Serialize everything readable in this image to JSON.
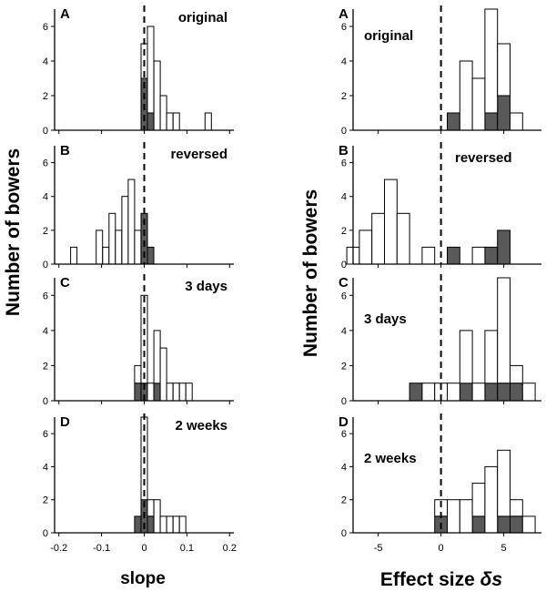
{
  "figure": {
    "left_ylabel": "Number of bowers",
    "right_ylabel": "Number of bowers",
    "left_xlabel": "slope",
    "right_xlabel_prefix": "Effect size ",
    "right_xlabel_symbol": "δs"
  },
  "colors": {
    "dark_bar": "#595959",
    "light_bar": "#ffffff",
    "axis": "#000000"
  },
  "chart_data": [
    {
      "type": "bar",
      "stacked": true,
      "column": "left",
      "panel": "A",
      "label": "original",
      "ylim": [
        0,
        7
      ],
      "yticks": [
        0,
        2,
        4,
        6
      ],
      "xlim": [
        -0.21,
        0.21
      ],
      "xticks": [
        -0.2,
        -0.1,
        0,
        0.1,
        0.2
      ],
      "xtick_labels": [
        "-0.2",
        "-0.1",
        "0",
        "0.1",
        "0.2"
      ],
      "show_xtick_labels": false,
      "bin_width": 0.015,
      "reference_line": 0,
      "series": [
        {
          "name": "dark",
          "bins": [
            [
              0.0,
              3
            ],
            [
              0.015,
              1
            ]
          ]
        },
        {
          "name": "light",
          "bins": [
            [
              0.0,
              2
            ],
            [
              0.015,
              5
            ],
            [
              0.03,
              4
            ],
            [
              0.045,
              2
            ],
            [
              0.06,
              1
            ],
            [
              0.075,
              1
            ],
            [
              0.15,
              1
            ]
          ]
        }
      ]
    },
    {
      "type": "bar",
      "stacked": true,
      "column": "left",
      "panel": "B",
      "label": "reversed",
      "ylim": [
        0,
        7
      ],
      "yticks": [
        0,
        2,
        4,
        6
      ],
      "xlim": [
        -0.21,
        0.21
      ],
      "xticks": [
        -0.2,
        -0.1,
        0,
        0.1,
        0.2
      ],
      "xtick_labels": [
        "-0.2",
        "-0.1",
        "0",
        "0.1",
        "0.2"
      ],
      "show_xtick_labels": false,
      "bin_width": 0.015,
      "reference_line": 0,
      "series": [
        {
          "name": "dark",
          "bins": [
            [
              0.0,
              3
            ],
            [
              0.015,
              1
            ]
          ]
        },
        {
          "name": "light",
          "bins": [
            [
              -0.165,
              1
            ],
            [
              -0.105,
              2
            ],
            [
              -0.09,
              1
            ],
            [
              -0.075,
              3
            ],
            [
              -0.06,
              2
            ],
            [
              -0.045,
              4
            ],
            [
              -0.03,
              5
            ],
            [
              -0.015,
              2
            ]
          ]
        }
      ]
    },
    {
      "type": "bar",
      "stacked": true,
      "column": "left",
      "panel": "C",
      "label": "3 days",
      "ylim": [
        0,
        7
      ],
      "yticks": [
        0,
        2,
        4,
        6
      ],
      "xlim": [
        -0.21,
        0.21
      ],
      "xticks": [
        -0.2,
        -0.1,
        0,
        0.1,
        0.2
      ],
      "xtick_labels": [
        "-0.2",
        "-0.1",
        "0",
        "0.1",
        "0.2"
      ],
      "show_xtick_labels": false,
      "bin_width": 0.015,
      "reference_line": 0,
      "series": [
        {
          "name": "dark",
          "bins": [
            [
              -0.015,
              1
            ],
            [
              0.0,
              1
            ],
            [
              0.03,
              1
            ]
          ]
        },
        {
          "name": "light",
          "bins": [
            [
              -0.015,
              1
            ],
            [
              0.0,
              5
            ],
            [
              0.015,
              1
            ],
            [
              0.03,
              3
            ],
            [
              0.045,
              3
            ],
            [
              0.06,
              1
            ],
            [
              0.075,
              1
            ],
            [
              0.09,
              1
            ],
            [
              0.105,
              1
            ]
          ]
        }
      ]
    },
    {
      "type": "bar",
      "stacked": true,
      "column": "left",
      "panel": "D",
      "label": "2 weeks",
      "ylim": [
        0,
        7
      ],
      "yticks": [
        0,
        2,
        4,
        6
      ],
      "xlim": [
        -0.21,
        0.21
      ],
      "xticks": [
        -0.2,
        -0.1,
        0,
        0.1,
        0.2
      ],
      "xtick_labels": [
        "-0.2",
        "-0.1",
        "0",
        "0.1",
        "0.2"
      ],
      "show_xtick_labels": true,
      "bin_width": 0.015,
      "reference_line": 0,
      "series": [
        {
          "name": "dark",
          "bins": [
            [
              -0.015,
              1
            ],
            [
              0.0,
              2
            ],
            [
              0.015,
              1
            ]
          ]
        },
        {
          "name": "light",
          "bins": [
            [
              0.0,
              5
            ],
            [
              0.015,
              1
            ],
            [
              0.03,
              2
            ],
            [
              0.045,
              1
            ],
            [
              0.06,
              1
            ],
            [
              0.075,
              1
            ],
            [
              0.09,
              1
            ]
          ]
        }
      ]
    },
    {
      "type": "bar",
      "stacked": true,
      "column": "right",
      "panel": "A",
      "label": "original",
      "ylim": [
        0,
        7
      ],
      "yticks": [
        0,
        2,
        4,
        6
      ],
      "xlim": [
        -7,
        8
      ],
      "xticks": [
        -5,
        0,
        5
      ],
      "xtick_labels": [
        "-5",
        "0",
        "5"
      ],
      "show_xtick_labels": false,
      "bin_width": 1,
      "reference_line": 0,
      "series": [
        {
          "name": "dark",
          "bins": [
            [
              1,
              1
            ],
            [
              4,
              1
            ],
            [
              5,
              2
            ]
          ]
        },
        {
          "name": "light",
          "bins": [
            [
              2,
              4
            ],
            [
              3,
              3
            ],
            [
              4,
              6
            ],
            [
              5,
              3
            ],
            [
              6,
              1
            ]
          ]
        }
      ]
    },
    {
      "type": "bar",
      "stacked": true,
      "column": "right",
      "panel": "B",
      "label": "reversed",
      "ylim": [
        0,
        7
      ],
      "yticks": [
        0,
        2,
        4,
        6
      ],
      "xlim": [
        -7,
        8
      ],
      "xticks": [
        -5,
        0,
        5
      ],
      "xtick_labels": [
        "-5",
        "0",
        "5"
      ],
      "show_xtick_labels": false,
      "bin_width": 1,
      "reference_line": 0,
      "series": [
        {
          "name": "dark",
          "bins": [
            [
              1,
              1
            ],
            [
              4,
              1
            ],
            [
              5,
              2
            ]
          ]
        },
        {
          "name": "light",
          "bins": [
            [
              -7,
              1
            ],
            [
              -6,
              2
            ],
            [
              -5,
              3
            ],
            [
              -4,
              5
            ],
            [
              -3,
              3
            ],
            [
              -1,
              1
            ],
            [
              3,
              1
            ]
          ]
        }
      ]
    },
    {
      "type": "bar",
      "stacked": true,
      "column": "right",
      "panel": "C",
      "label": "3 days",
      "ylim": [
        0,
        7
      ],
      "yticks": [
        0,
        2,
        4,
        6
      ],
      "xlim": [
        -7,
        8
      ],
      "xticks": [
        -5,
        0,
        5
      ],
      "xtick_labels": [
        "-5",
        "0",
        "5"
      ],
      "show_xtick_labels": false,
      "bin_width": 1,
      "reference_line": 0,
      "series": [
        {
          "name": "dark",
          "bins": [
            [
              -2,
              1
            ],
            [
              2,
              1
            ],
            [
              4,
              1
            ],
            [
              5,
              1
            ],
            [
              6,
              1
            ]
          ]
        },
        {
          "name": "light",
          "bins": [
            [
              -1,
              1
            ],
            [
              0,
              1
            ],
            [
              1,
              1
            ],
            [
              2,
              3
            ],
            [
              3,
              1
            ],
            [
              4,
              3
            ],
            [
              5,
              6
            ],
            [
              6,
              1
            ],
            [
              7,
              1
            ]
          ]
        }
      ]
    },
    {
      "type": "bar",
      "stacked": true,
      "column": "right",
      "panel": "D",
      "label": "2 weeks",
      "ylim": [
        0,
        7
      ],
      "yticks": [
        0,
        2,
        4,
        6
      ],
      "xlim": [
        -7,
        8
      ],
      "xticks": [
        -5,
        0,
        5
      ],
      "xtick_labels": [
        "-5",
        "0",
        "5"
      ],
      "show_xtick_labels": true,
      "bin_width": 1,
      "reference_line": 0,
      "series": [
        {
          "name": "dark",
          "bins": [
            [
              0,
              1
            ],
            [
              3,
              1
            ],
            [
              5,
              1
            ],
            [
              6,
              1
            ]
          ]
        },
        {
          "name": "light",
          "bins": [
            [
              0,
              1
            ],
            [
              1,
              2
            ],
            [
              2,
              2
            ],
            [
              3,
              2
            ],
            [
              4,
              4
            ],
            [
              5,
              4
            ],
            [
              6,
              1
            ],
            [
              7,
              1
            ]
          ]
        }
      ]
    }
  ]
}
